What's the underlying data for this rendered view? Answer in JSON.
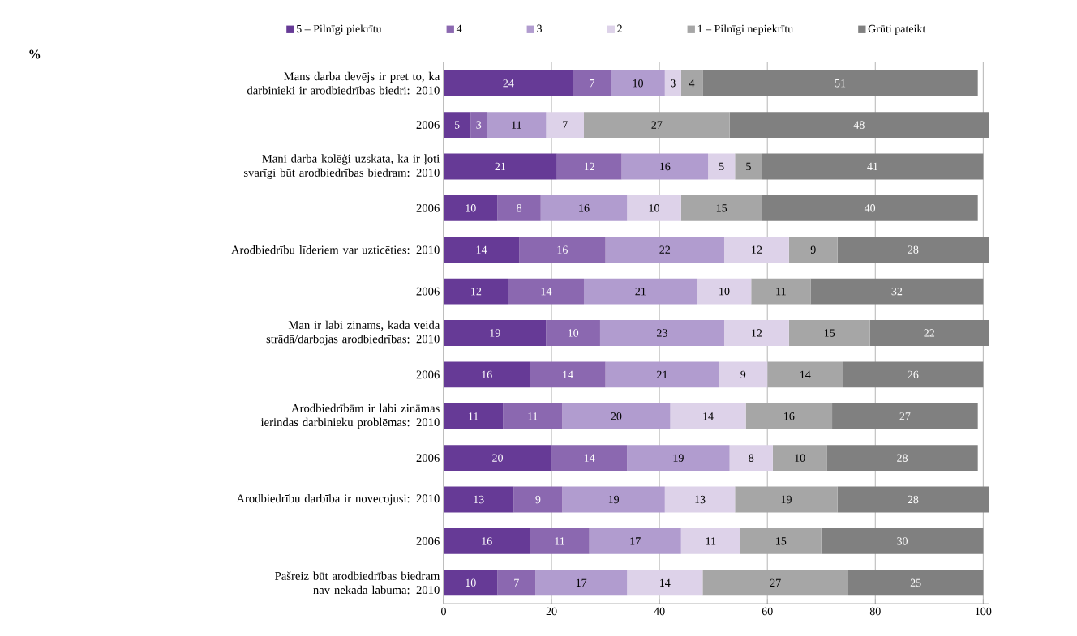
{
  "chart_data": {
    "type": "bar",
    "orientation": "horizontal",
    "stacked": true,
    "data_labels": true,
    "grid": "x",
    "legend": "top",
    "annotations": [
      "%"
    ],
    "categories": [
      "Mans darba devējs ir pret to, ka darbinieki ir arodbiedrības biedri: 2010",
      "2006",
      "Mani darba kolēģi uzskata, ka ir ļoti svarīgi būt arodbiedrības biedram: 2010",
      "2006",
      "Arodbiedrību līderiem var uzticēties: 2010",
      "2006",
      "Man ir labi zināms, kādā veidā strādā/darbojas arodbiedrības: 2010",
      "2006",
      "Arodbiedrībām ir labi zināmas ierindas darbinieku problēmas: 2010",
      "2006",
      "Arodbiedrību darbība ir novecojusi: 2010",
      "2006",
      "Pašreiz būt arodbiedrības biedram nav nekāda labuma: 2010"
    ],
    "xlim": [
      0,
      101
    ],
    "xticks": [
      0,
      20,
      40,
      60,
      80,
      100
    ],
    "series": [
      {
        "name": "5 – Pilnīgi piekrītu",
        "color": "#663a96",
        "values": [
          24,
          5,
          21,
          10,
          14,
          12,
          19,
          16,
          11,
          20,
          13,
          16,
          10
        ]
      },
      {
        "name": "4",
        "color": "#8b68b0",
        "values": [
          7,
          3,
          12,
          8,
          16,
          14,
          10,
          14,
          11,
          14,
          9,
          11,
          7
        ]
      },
      {
        "name": "3",
        "color": "#b19ccf",
        "values": [
          10,
          11,
          16,
          16,
          22,
          21,
          23,
          21,
          20,
          19,
          19,
          17,
          17
        ]
      },
      {
        "name": "2",
        "color": "#ddd2e9",
        "values": [
          3,
          7,
          5,
          10,
          12,
          10,
          12,
          9,
          14,
          8,
          13,
          11,
          14
        ]
      },
      {
        "name": "1 – Pilnīgi nepiekrītu",
        "color": "#a6a6a6",
        "values": [
          4,
          27,
          5,
          15,
          9,
          11,
          15,
          14,
          16,
          10,
          19,
          15,
          27
        ]
      },
      {
        "name": "Grūti pateikt",
        "color": "#808080",
        "values": [
          51,
          48,
          41,
          40,
          28,
          32,
          22,
          26,
          27,
          28,
          28,
          30,
          25
        ]
      }
    ]
  }
}
